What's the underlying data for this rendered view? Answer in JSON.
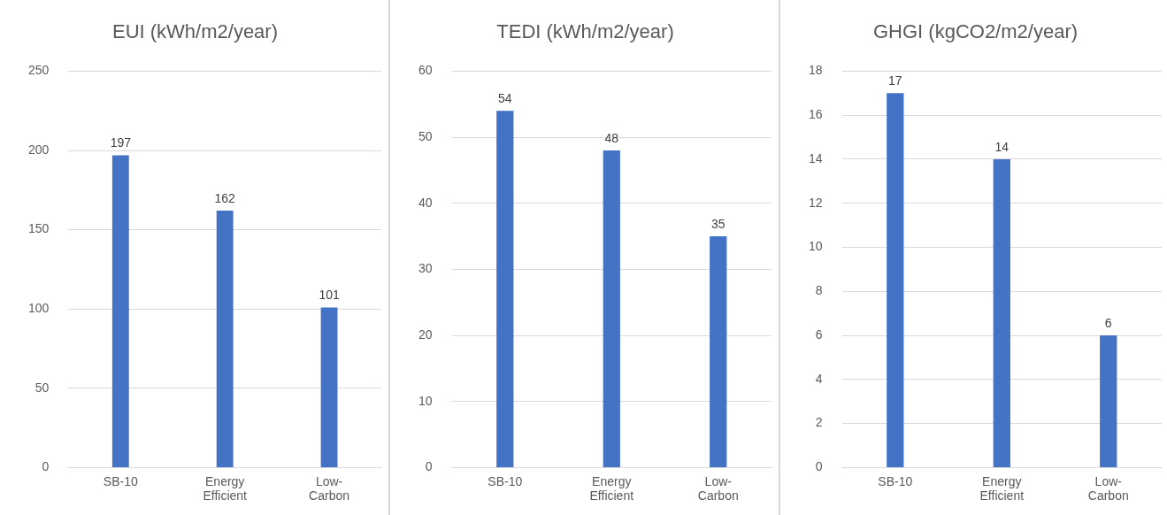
{
  "chart_data": [
    {
      "type": "bar",
      "title": "EUI (kWh/m2/year)",
      "categories": [
        "SB-10",
        "Energy Efficient",
        "Low-Carbon"
      ],
      "values": [
        197,
        162,
        101
      ],
      "color": "#4472c4",
      "ylim": [
        0,
        250
      ],
      "yticks": [
        0,
        50,
        100,
        150,
        200,
        250
      ],
      "grid": "y",
      "data_labels": true
    },
    {
      "type": "bar",
      "title": "TEDI (kWh/m2/year)",
      "categories": [
        "SB-10",
        "Energy Efficient",
        "Low-Carbon"
      ],
      "values": [
        54,
        48,
        35
      ],
      "color": "#4472c4",
      "ylim": [
        0,
        60
      ],
      "yticks": [
        0,
        10,
        20,
        30,
        40,
        50,
        60
      ],
      "grid": "y",
      "data_labels": true
    },
    {
      "type": "bar",
      "title": "GHGI (kgCO2/m2/year)",
      "categories": [
        "SB-10",
        "Energy Efficient",
        "Low-Carbon"
      ],
      "values": [
        17,
        14,
        6
      ],
      "color": "#4472c4",
      "ylim": [
        0,
        18
      ],
      "yticks": [
        0,
        2,
        4,
        6,
        8,
        10,
        12,
        14,
        16,
        18
      ],
      "grid": "y",
      "data_labels": true
    }
  ]
}
